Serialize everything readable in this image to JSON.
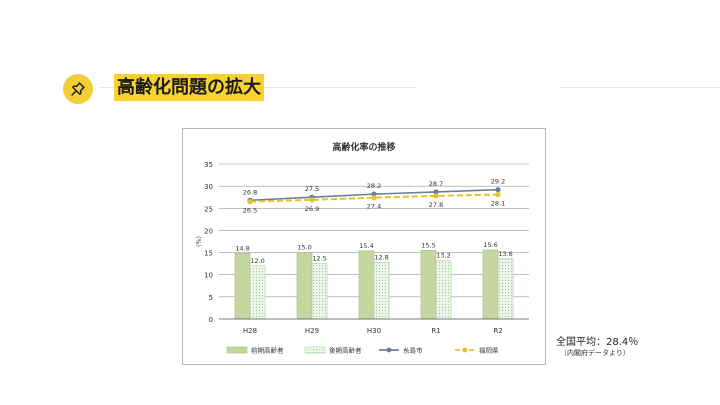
{
  "header": {
    "title": "高齢化問題の拡大",
    "icon": "pushpin-icon",
    "accent_color": "#f7d230"
  },
  "note": {
    "national_average": "全国平均：28.4％",
    "source": "（内閣府データより）"
  },
  "chart_data": {
    "type": "bar",
    "title": "高齢化率の推移",
    "ylabel": "（％）",
    "ylim": [
      0,
      35
    ],
    "yticks": [
      0,
      5,
      10,
      15,
      20,
      25,
      30,
      35
    ],
    "grid": true,
    "legend_position": "bottom",
    "categories": [
      "H28",
      "H29",
      "H30",
      "R1",
      "R2"
    ],
    "series": [
      {
        "name": "前期高齢者",
        "kind": "bar",
        "style": "solid",
        "color": "#c5d6a0",
        "values": [
          14.8,
          15.0,
          15.4,
          15.5,
          15.6
        ]
      },
      {
        "name": "後期高齢者",
        "kind": "bar",
        "style": "dotted",
        "color": "#d9ecd0",
        "values": [
          12.0,
          12.5,
          12.8,
          13.2,
          13.6
        ]
      },
      {
        "name": "糸島市",
        "kind": "line",
        "style": "solid",
        "color": "#6a7d9a",
        "values": [
          26.8,
          27.5,
          28.2,
          28.7,
          29.2
        ]
      },
      {
        "name": "福岡県",
        "kind": "line",
        "style": "dashed",
        "color": "#e8c22a",
        "values": [
          26.5,
          26.9,
          27.4,
          27.8,
          28.1
        ]
      }
    ]
  }
}
